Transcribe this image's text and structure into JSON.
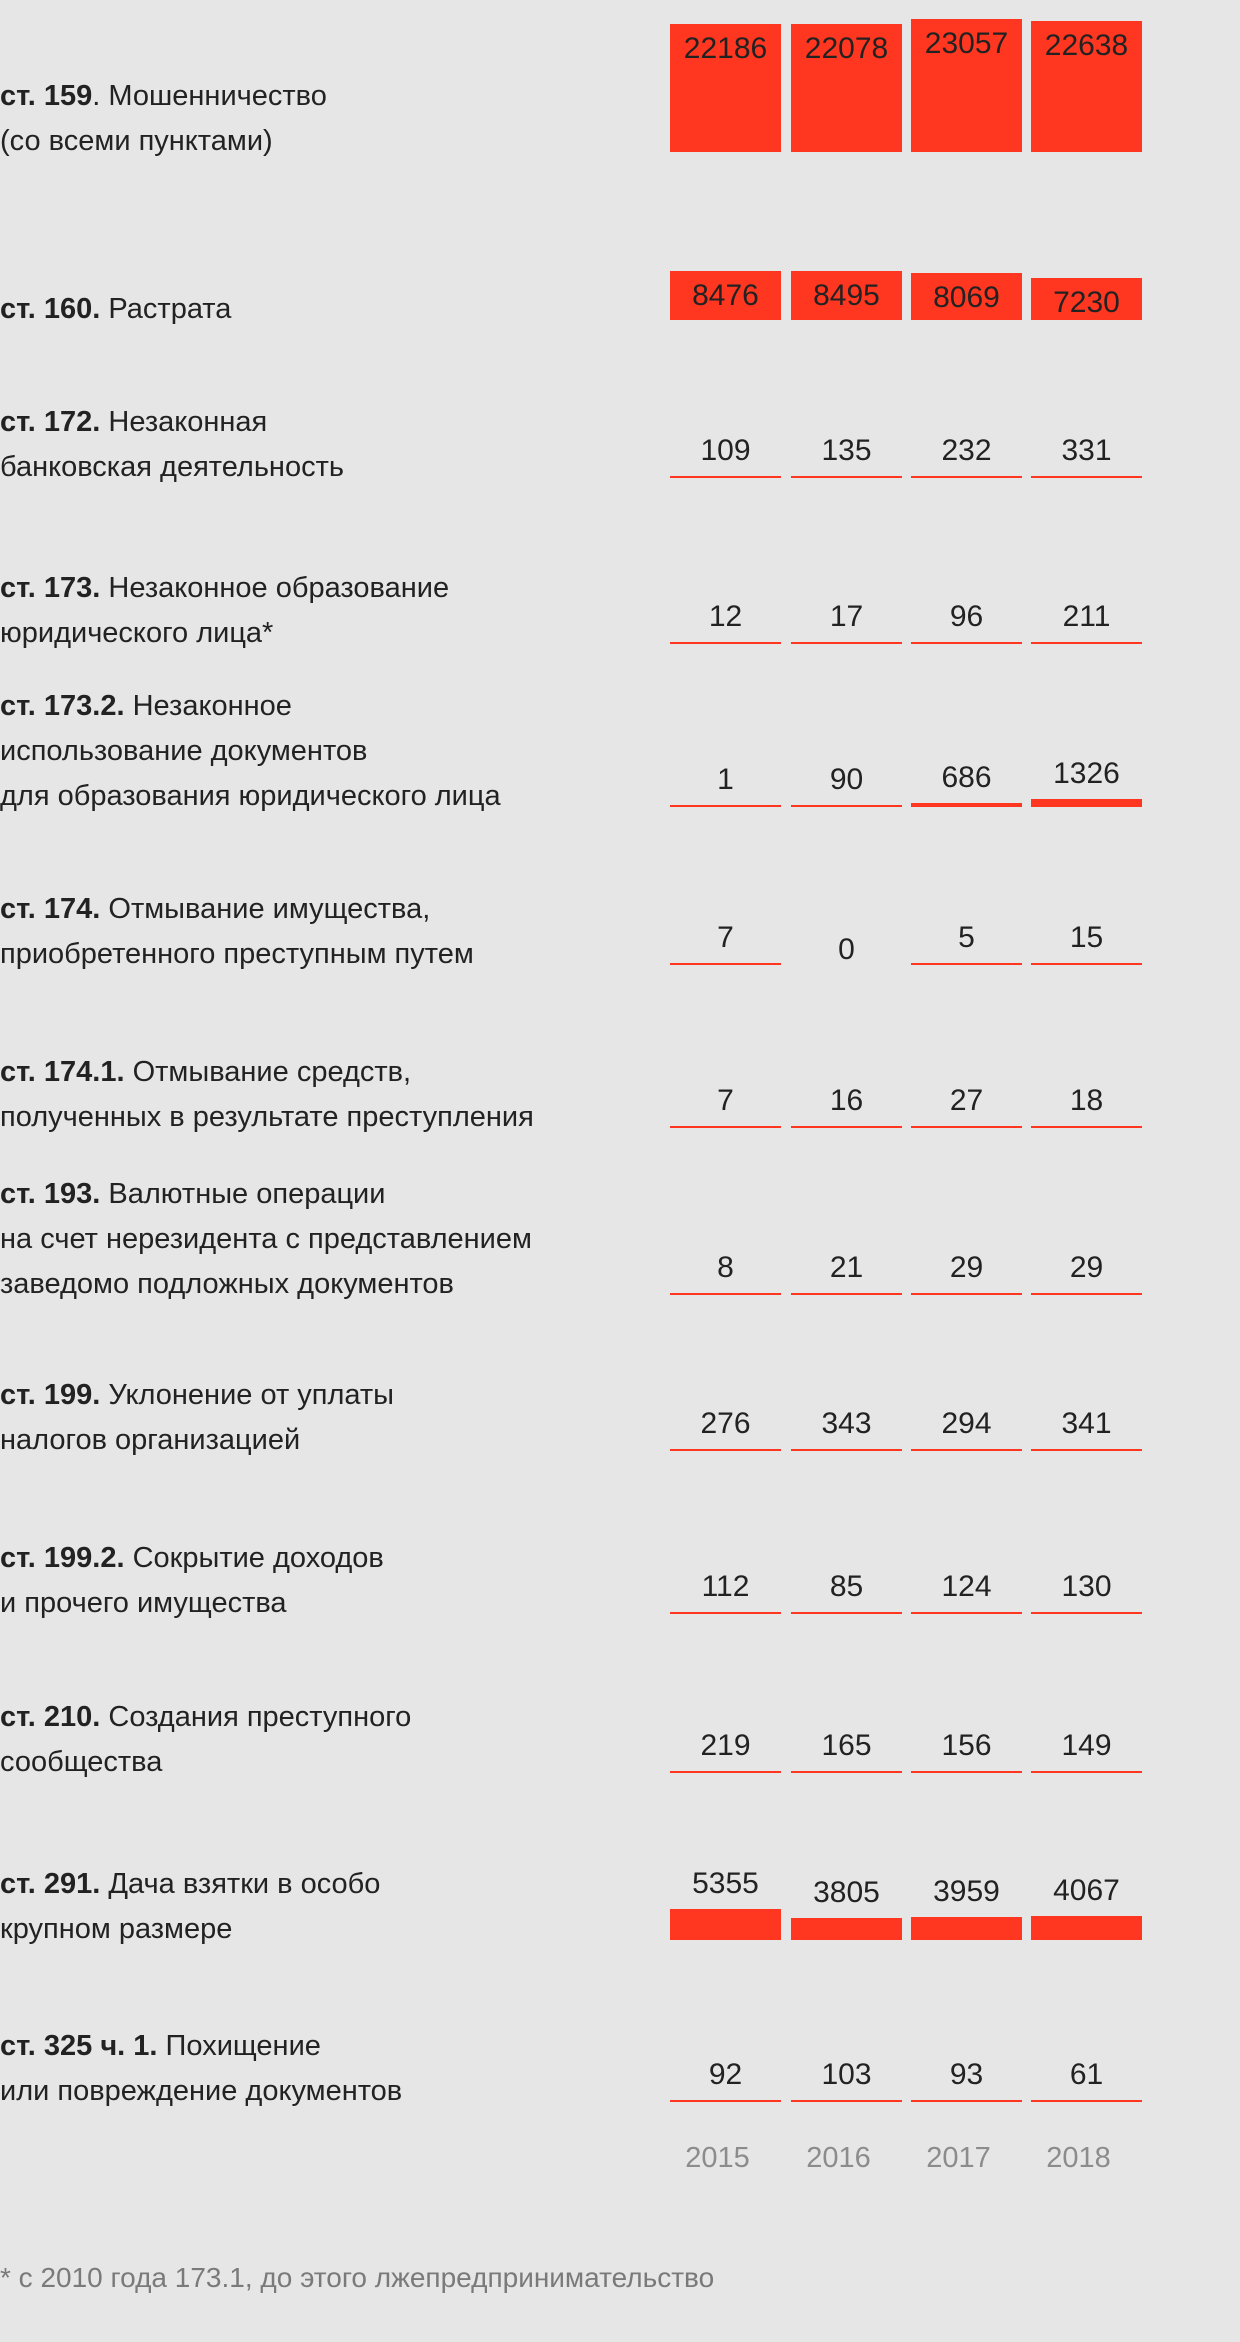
{
  "chart_data": {
    "type": "bar",
    "categories": [
      "2015",
      "2016",
      "2017",
      "2018"
    ],
    "bar_color": "#ff3720",
    "background": "#e6e6e6",
    "rows": [
      {
        "code": "ст. 159",
        "lines": [
          ". Мошенничество",
          "(со всеми пунктами)"
        ],
        "values": [
          22186,
          22078,
          23057,
          22638
        ]
      },
      {
        "code": "ст. 160.",
        "lines": [
          " Растрата"
        ],
        "values": [
          8476,
          8495,
          8069,
          7230
        ]
      },
      {
        "code": "ст. 172.",
        "lines": [
          " Незаконная",
          "банковская деятельность"
        ],
        "values": [
          109,
          135,
          232,
          331
        ]
      },
      {
        "code": "ст. 173.",
        "lines": [
          " Незаконное образование",
          "юридического лица*"
        ],
        "values": [
          12,
          17,
          96,
          211
        ]
      },
      {
        "code": "ст. 173.2.",
        "lines": [
          " Незаконное",
          "использование документов",
          "для образования юридического лица"
        ],
        "values": [
          1,
          90,
          686,
          1326
        ]
      },
      {
        "code": "ст. 174.",
        "lines": [
          " Отмывание имущества,",
          "приобретенного преступным путем"
        ],
        "values": [
          7,
          0,
          5,
          15
        ]
      },
      {
        "code": "ст. 174.1.",
        "lines": [
          " Отмывание средств,",
          "полученных в результате преступления"
        ],
        "values": [
          7,
          16,
          27,
          18
        ]
      },
      {
        "code": "ст. 193.",
        "lines": [
          " Валютные операции",
          "на счет нерезидента с представлением",
          "заведомо подложных документов"
        ],
        "values": [
          8,
          21,
          29,
          29
        ]
      },
      {
        "code": "ст. 199.",
        "lines": [
          " Уклонение от уплаты",
          "налогов организацией"
        ],
        "values": [
          276,
          343,
          294,
          341
        ]
      },
      {
        "code": "ст. 199.2.",
        "lines": [
          " Сокрытие доходов",
          "и прочего имущества"
        ],
        "values": [
          112,
          85,
          124,
          130
        ]
      },
      {
        "code": "ст. 210.",
        "lines": [
          " Создания преступного",
          "сообщества"
        ],
        "values": [
          219,
          165,
          156,
          149
        ]
      },
      {
        "code": "ст. 291.",
        "lines": [
          " Дача взятки в особо",
          "крупном размере"
        ],
        "values": [
          5355,
          3805,
          3959,
          4067
        ]
      },
      {
        "code": "ст. 325 ч. 1.",
        "lines": [
          " Похищение",
          "или повреждение документов"
        ],
        "values": [
          92,
          103,
          93,
          61
        ]
      }
    ],
    "footnote": "* с 2010 года 173.1, до этого лжепредпринимательство"
  }
}
